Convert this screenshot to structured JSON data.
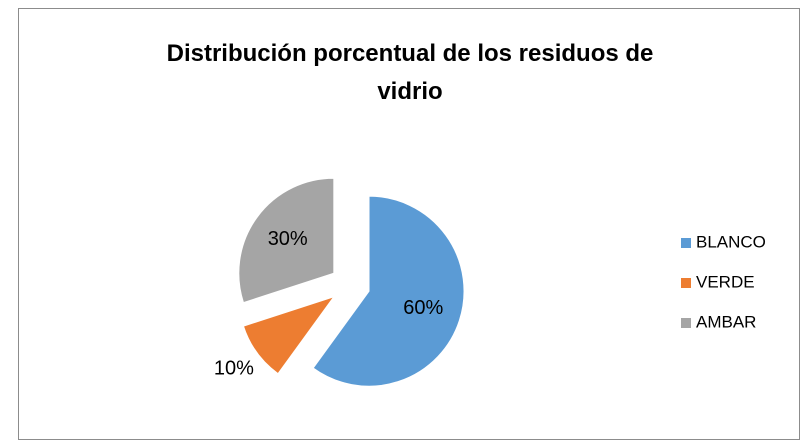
{
  "chart_data": {
    "type": "pie",
    "title": "Distribución porcentual de los residuos de vidrio",
    "categories": [
      "BLANCO",
      "VERDE",
      "AMBAR"
    ],
    "values": [
      60,
      10,
      30
    ],
    "value_labels": [
      "60%",
      "10%",
      "30%"
    ],
    "colors": [
      "#5b9bd5",
      "#ed7d31",
      "#a5a5a5"
    ],
    "legend": "right"
  }
}
